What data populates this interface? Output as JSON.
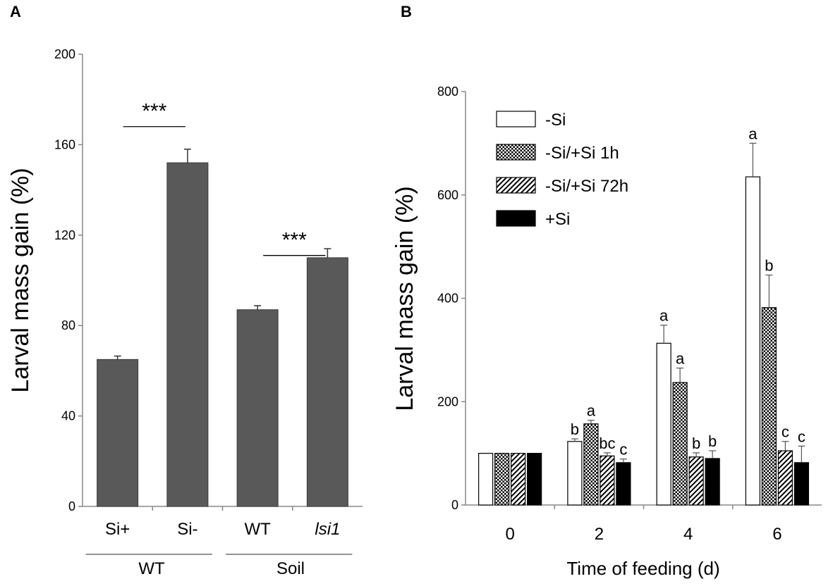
{
  "chart_data": [
    {
      "panel": "A",
      "type": "bar",
      "ylabel": "Larval mass gain (%)",
      "ylim": [
        0,
        200
      ],
      "yticks": [
        0,
        40,
        80,
        120,
        160,
        200
      ],
      "categories": [
        "Si+",
        "Si-",
        "WT",
        "lsi1"
      ],
      "values": [
        65,
        152,
        87,
        110
      ],
      "errors": [
        1.5,
        6,
        1.8,
        4
      ],
      "bar_color": "#595959",
      "groups": [
        {
          "label": "WT",
          "categories": [
            0,
            1
          ]
        },
        {
          "label": "Soil",
          "categories": [
            2,
            3
          ]
        }
      ],
      "annotations": [
        {
          "text": "***",
          "categories": [
            0,
            1
          ],
          "line_value": 168
        },
        {
          "text": "***",
          "categories": [
            2,
            3
          ],
          "line_value": 111
        }
      ]
    },
    {
      "panel": "B",
      "type": "bar",
      "xlabel": "Time of feeding (d)",
      "ylabel": "Larval mass gain (%)",
      "ylim": [
        0,
        800
      ],
      "yticks": [
        0,
        200,
        400,
        600,
        800
      ],
      "categories": [
        "0",
        "2",
        "4",
        "6"
      ],
      "series": [
        {
          "name": "-Si",
          "fill": "open",
          "values": [
            100,
            123,
            313,
            635
          ],
          "errors": [
            0,
            5,
            35,
            65
          ],
          "letters": [
            "",
            "b",
            "a",
            "a"
          ]
        },
        {
          "name": "-Si/+Si 1h",
          "fill": "cross-hatch",
          "values": [
            100,
            157,
            237,
            382
          ],
          "errors": [
            0,
            7,
            28,
            63
          ],
          "letters": [
            "",
            "a",
            "a",
            "b"
          ]
        },
        {
          "name": "-Si/+Si 72h",
          "fill": "diagonal",
          "values": [
            100,
            95,
            93,
            105
          ],
          "errors": [
            0,
            6,
            8,
            18
          ],
          "letters": [
            "",
            "bc",
            "b",
            "c"
          ]
        },
        {
          "name": "+Si",
          "fill": "solid",
          "values": [
            100,
            82,
            90,
            82
          ],
          "errors": [
            0,
            7,
            15,
            32
          ],
          "letters": [
            "",
            "c",
            "b",
            "c"
          ]
        }
      ]
    }
  ]
}
